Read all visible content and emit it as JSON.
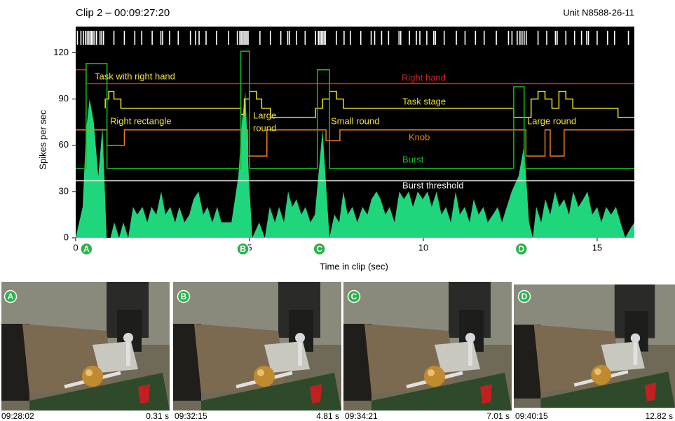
{
  "chart_data": {
    "type": "area",
    "title": "Clip 2 – 00:09:27:20",
    "subtitle": "Unit N8588-26-11",
    "x_label": "Time in clip (sec)",
    "y_label": "Spikes per sec",
    "xlim": [
      0,
      16.07
    ],
    "ylim": [
      0,
      137
    ],
    "xticks": [
      0,
      5,
      10,
      15
    ],
    "yticks": [
      0,
      30,
      60,
      90,
      120
    ],
    "rate": {
      "color": "#1fd67c",
      "x": [
        0,
        0.1,
        0.2,
        0.3,
        0.4,
        0.52,
        0.65,
        0.77,
        0.89,
        1.0,
        1.11,
        1.25,
        1.37,
        1.51,
        1.65,
        1.77,
        1.92,
        2.06,
        2.18,
        2.32,
        2.46,
        2.58,
        2.72,
        2.86,
        2.98,
        3.13,
        3.27,
        3.39,
        3.53,
        3.67,
        3.79,
        3.93,
        4.07,
        4.19,
        4.33,
        4.48,
        4.68,
        4.78,
        4.88,
        4.98,
        5.08,
        5.28,
        5.44,
        5.58,
        5.73,
        5.85,
        5.99,
        6.11,
        6.23,
        6.35,
        6.49,
        6.61,
        6.75,
        6.88,
        7.0,
        7.1,
        7.2,
        7.3,
        7.44,
        7.58,
        7.7,
        7.82,
        7.96,
        8.1,
        8.25,
        8.39,
        8.51,
        8.65,
        8.77,
        8.91,
        9.03,
        9.17,
        9.31,
        9.44,
        9.58,
        9.7,
        9.84,
        9.98,
        10.12,
        10.24,
        10.38,
        10.52,
        10.65,
        10.79,
        10.93,
        11.05,
        11.19,
        11.33,
        11.45,
        11.59,
        11.73,
        11.85,
        12.0,
        12.14,
        12.26,
        12.4,
        12.54,
        12.74,
        12.9,
        13.04,
        13.15,
        13.25,
        13.39,
        13.51,
        13.65,
        13.79,
        13.91,
        14.05,
        14.19,
        14.31,
        14.46,
        14.6,
        14.72,
        14.86,
        15.0,
        15.12,
        15.26,
        15.4,
        15.54,
        15.67,
        15.81,
        15.93,
        16.07
      ],
      "values": [
        0,
        10,
        20,
        70,
        90,
        75,
        40,
        72,
        0,
        0,
        10,
        0,
        10,
        0,
        20,
        15,
        20,
        10,
        20,
        15,
        30,
        15,
        20,
        10,
        20,
        10,
        15,
        25,
        30,
        15,
        20,
        10,
        20,
        10,
        10,
        10,
        40,
        75,
        95,
        40,
        0,
        10,
        0,
        20,
        10,
        20,
        10,
        30,
        20,
        25,
        15,
        20,
        10,
        15,
        45,
        70,
        35,
        0,
        15,
        10,
        30,
        15,
        20,
        10,
        20,
        15,
        25,
        30,
        25,
        15,
        20,
        10,
        30,
        25,
        30,
        20,
        30,
        25,
        30,
        20,
        30,
        15,
        20,
        10,
        30,
        15,
        20,
        10,
        25,
        15,
        20,
        10,
        15,
        20,
        10,
        20,
        30,
        40,
        60,
        10,
        0,
        20,
        10,
        25,
        15,
        30,
        20,
        25,
        15,
        30,
        20,
        25,
        30,
        15,
        20,
        10,
        20,
        15,
        20,
        10,
        0,
        5,
        10
      ]
    },
    "spike_times": [
      0.05,
      0.15,
      0.22,
      0.28,
      0.33,
      0.38,
      0.42,
      0.46,
      0.5,
      0.55,
      0.6,
      0.7,
      0.75,
      0.8,
      1.1,
      1.4,
      1.7,
      1.9,
      2.2,
      2.45,
      2.5,
      2.7,
      2.95,
      3.3,
      3.45,
      3.55,
      3.75,
      4.05,
      4.4,
      4.65,
      4.72,
      4.76,
      4.8,
      4.84,
      4.88,
      4.92,
      4.96,
      5.3,
      5.6,
      5.9,
      6.1,
      6.15,
      6.35,
      6.6,
      6.9,
      6.98,
      7.02,
      7.06,
      7.1,
      7.14,
      7.18,
      7.5,
      7.72,
      7.9,
      8.2,
      8.5,
      8.6,
      8.8,
      9.0,
      9.3,
      9.35,
      9.6,
      9.8,
      9.9,
      10.1,
      10.3,
      10.35,
      10.6,
      10.95,
      11.2,
      11.5,
      11.75,
      12.1,
      12.45,
      12.55,
      12.7,
      12.78,
      12.84,
      12.9,
      12.96,
      13.3,
      13.55,
      13.8,
      13.85,
      14.1,
      14.35,
      14.55,
      14.7,
      14.75,
      15.0,
      15.3,
      15.5,
      15.9
    ],
    "traces": [
      {
        "name": "Right hand",
        "color": "#d42020",
        "x": [
          0,
          0.3,
          0.3,
          16.07
        ],
        "values": [
          109,
          109,
          100,
          100
        ]
      },
      {
        "name": "Task stage",
        "color": "#e8e020",
        "x": [
          0.85,
          0.85,
          0.95,
          0.95,
          1.1,
          1.1,
          1.3,
          1.3,
          4.75,
          4.75,
          4.85,
          4.85,
          5.0,
          5.0,
          5.2,
          5.2,
          5.35,
          5.35,
          5.6,
          5.6,
          6.9,
          6.9,
          7.1,
          7.1,
          7.3,
          7.3,
          7.5,
          7.5,
          7.7,
          7.7,
          12.6,
          12.6,
          13.1,
          13.1,
          13.3,
          13.3,
          13.5,
          13.5,
          13.7,
          13.7,
          13.9,
          13.9,
          14.1,
          14.1,
          14.3,
          14.3,
          14.5,
          14.5,
          15.6,
          15.6,
          16.07
        ],
        "values": [
          84,
          90,
          90,
          95,
          95,
          90,
          90,
          84,
          84,
          80,
          80,
          90,
          90,
          95,
          95,
          90,
          90,
          84,
          84,
          78,
          78,
          84,
          84,
          90,
          90,
          95,
          95,
          90,
          90,
          84,
          84,
          78,
          78,
          90,
          90,
          95,
          95,
          90,
          90,
          84,
          84,
          95,
          95,
          90,
          90,
          84,
          84,
          84,
          84,
          78,
          78
        ]
      },
      {
        "name": "Knob",
        "color": "#e8801a",
        "x": [
          0,
          0.9,
          0.9,
          1.4,
          1.4,
          4.95,
          4.95,
          5.5,
          5.5,
          7.2,
          7.2,
          7.6,
          7.6,
          12.95,
          12.95,
          13.5,
          13.5,
          13.65,
          13.65,
          14.05,
          14.05,
          16.07
        ],
        "values": [
          70,
          70,
          60,
          60,
          70,
          70,
          53,
          53,
          70,
          70,
          63,
          63,
          70,
          70,
          53,
          53,
          70,
          70,
          53,
          53,
          70,
          70
        ]
      },
      {
        "name": "Burst",
        "color": "#10c020",
        "x": [
          0,
          0.3,
          0.3,
          0.9,
          0.9,
          4.75,
          4.75,
          5.0,
          5.0,
          6.95,
          6.95,
          7.3,
          7.3,
          12.6,
          12.6,
          12.9,
          12.9,
          16.07
        ],
        "values": [
          45,
          45,
          113,
          113,
          45,
          45,
          121,
          121,
          45,
          45,
          109,
          109,
          45,
          45,
          98,
          98,
          45,
          45
        ]
      },
      {
        "name": "Burst threshold",
        "color": "#f0f0f0",
        "x": [
          0,
          16.07
        ],
        "values": [
          37,
          37
        ]
      }
    ],
    "annotations": [
      "Task with right hand",
      "Right rectangle",
      "Large",
      "round",
      "Small round",
      "Large round"
    ],
    "frames": {
      "markers": [
        "A",
        "B",
        "C",
        "D"
      ],
      "timecodes": [
        "09:28:02",
        "09:32:15",
        "09:34:21",
        "09:40:15"
      ],
      "times": [
        0.31,
        4.81,
        7.01,
        12.82
      ],
      "time_labels": [
        "0.31 s",
        "4.81 s",
        "7.01 s",
        "12.82 s"
      ]
    }
  }
}
